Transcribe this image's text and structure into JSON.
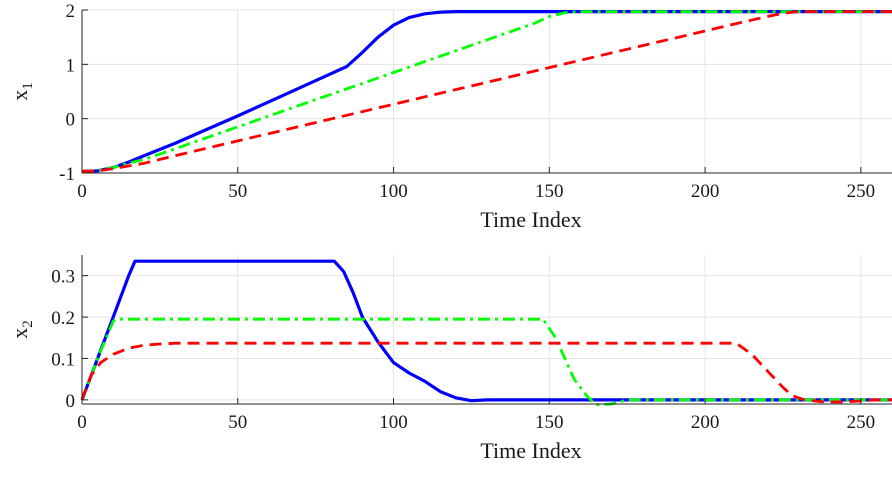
{
  "chart_data": [
    {
      "type": "line",
      "xlabel": "Time Index",
      "ylabel": "x",
      "ylabel_sub": "1",
      "xlim": [
        0,
        260
      ],
      "ylim": [
        -1,
        2
      ],
      "xticks": [
        0,
        50,
        100,
        150,
        200,
        250
      ],
      "yticks": [
        -1,
        0,
        1,
        2
      ],
      "grid": true,
      "series": [
        {
          "color": "#0000ff",
          "style": "solid",
          "x": [
            0,
            5,
            10,
            15,
            20,
            30,
            40,
            50,
            60,
            70,
            80,
            85,
            90,
            95,
            100,
            105,
            110,
            115,
            120,
            130,
            150,
            200,
            250,
            260
          ],
          "y": [
            -0.97,
            -0.96,
            -0.9,
            -0.8,
            -0.68,
            -0.45,
            -0.2,
            0.05,
            0.31,
            0.57,
            0.83,
            0.96,
            1.22,
            1.5,
            1.72,
            1.86,
            1.93,
            1.96,
            1.97,
            1.97,
            1.97,
            1.97,
            1.97,
            1.97
          ]
        },
        {
          "color": "#00ff00",
          "style": "dashdot",
          "x": [
            0,
            5,
            10,
            15,
            20,
            30,
            50,
            70,
            90,
            110,
            130,
            145,
            150,
            155,
            160,
            170,
            200,
            250,
            260
          ],
          "y": [
            -0.97,
            -0.96,
            -0.9,
            -0.82,
            -0.75,
            -0.55,
            -0.15,
            0.25,
            0.65,
            1.05,
            1.45,
            1.75,
            1.88,
            1.95,
            1.97,
            1.97,
            1.97,
            1.97,
            1.97
          ]
        },
        {
          "color": "#ff0000",
          "style": "dashed",
          "x": [
            0,
            5,
            10,
            15,
            20,
            30,
            50,
            70,
            90,
            110,
            130,
            150,
            170,
            190,
            210,
            220,
            225,
            230,
            240,
            250,
            260
          ],
          "y": [
            -0.97,
            -0.96,
            -0.92,
            -0.87,
            -0.82,
            -0.68,
            -0.41,
            -0.14,
            0.13,
            0.4,
            0.67,
            0.94,
            1.21,
            1.48,
            1.75,
            1.88,
            1.94,
            1.97,
            1.97,
            1.97,
            1.97
          ]
        }
      ]
    },
    {
      "type": "line",
      "xlabel": "Time Index",
      "ylabel": "x",
      "ylabel_sub": "2",
      "xlim": [
        0,
        260
      ],
      "ylim": [
        -0.01,
        0.35
      ],
      "xticks": [
        0,
        50,
        100,
        150,
        200,
        250
      ],
      "yticks": [
        0,
        0.1,
        0.2,
        0.3
      ],
      "yticklabels": [
        "0",
        "0.1",
        "0.2",
        "0.3"
      ],
      "grid": true,
      "series": [
        {
          "color": "#0000ff",
          "style": "solid",
          "x": [
            0,
            5,
            10,
            15,
            17,
            30,
            50,
            70,
            81,
            84,
            87,
            90,
            95,
            100,
            105,
            110,
            115,
            120,
            125,
            130,
            150,
            200,
            250,
            260
          ],
          "y": [
            0,
            0.1,
            0.2,
            0.3,
            0.335,
            0.335,
            0.335,
            0.335,
            0.335,
            0.31,
            0.26,
            0.2,
            0.14,
            0.09,
            0.065,
            0.045,
            0.02,
            0.005,
            -0.002,
            0,
            0,
            0,
            0,
            0
          ]
        },
        {
          "color": "#00ff00",
          "style": "dashdot",
          "x": [
            0,
            5,
            10,
            11,
            30,
            60,
            100,
            140,
            148,
            152,
            155,
            158,
            162,
            165,
            170,
            175,
            180,
            200,
            250,
            260
          ],
          "y": [
            0,
            0.1,
            0.19,
            0.195,
            0.195,
            0.195,
            0.195,
            0.195,
            0.195,
            0.15,
            0.1,
            0.05,
            0.01,
            -0.012,
            -0.01,
            0,
            0,
            0,
            0,
            0
          ]
        },
        {
          "color": "#ff0000",
          "style": "dashed",
          "x": [
            0,
            3,
            6,
            10,
            15,
            20,
            25,
            30,
            60,
            100,
            150,
            200,
            210,
            215,
            220,
            225,
            228,
            232,
            238,
            245,
            255,
            260
          ],
          "y": [
            0,
            0.06,
            0.09,
            0.11,
            0.125,
            0.132,
            0.135,
            0.137,
            0.137,
            0.137,
            0.137,
            0.137,
            0.137,
            0.11,
            0.07,
            0.03,
            0.01,
            0,
            -0.005,
            -0.005,
            0,
            0
          ]
        }
      ]
    }
  ]
}
